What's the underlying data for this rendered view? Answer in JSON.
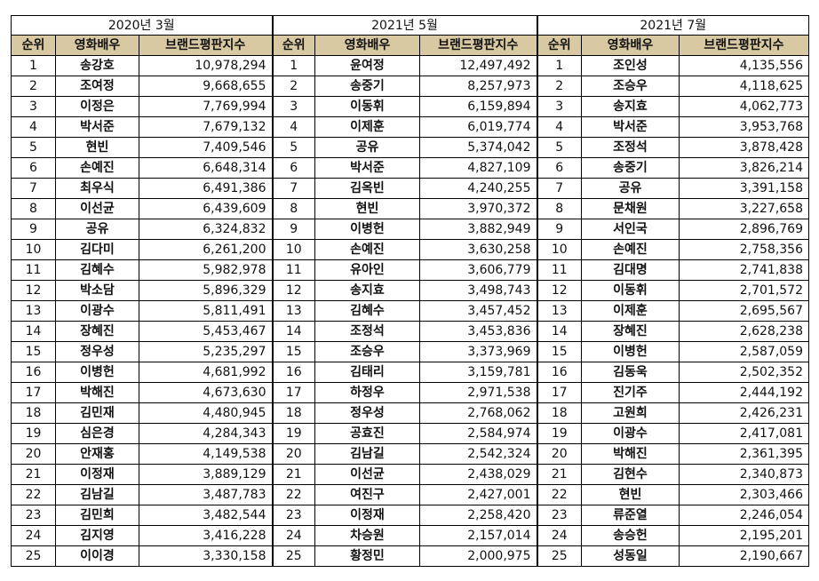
{
  "periods": [
    "2020년 3월",
    "2021년 5월",
    "2021년 7월"
  ],
  "headers": {
    "rank": "순위",
    "name": "영화배우",
    "index": "브랜드평판지수"
  },
  "rows": [
    [
      [
        "1",
        "송강호",
        "10,978,294"
      ],
      [
        "1",
        "윤여정",
        "12,497,492"
      ],
      [
        "1",
        "조인성",
        "4,135,556"
      ]
    ],
    [
      [
        "2",
        "조여정",
        "9,668,655"
      ],
      [
        "2",
        "송중기",
        "8,257,973"
      ],
      [
        "2",
        "조승우",
        "4,118,625"
      ]
    ],
    [
      [
        "3",
        "이정은",
        "7,769,994"
      ],
      [
        "3",
        "이동휘",
        "6,159,894"
      ],
      [
        "3",
        "송지효",
        "4,062,773"
      ]
    ],
    [
      [
        "4",
        "박서준",
        "7,679,132"
      ],
      [
        "4",
        "이제훈",
        "6,019,774"
      ],
      [
        "4",
        "박서준",
        "3,953,768"
      ]
    ],
    [
      [
        "5",
        "현빈",
        "7,409,546"
      ],
      [
        "5",
        "공유",
        "5,374,042"
      ],
      [
        "5",
        "조정석",
        "3,878,428"
      ]
    ],
    [
      [
        "6",
        "손예진",
        "6,648,314"
      ],
      [
        "6",
        "박서준",
        "4,827,109"
      ],
      [
        "6",
        "송중기",
        "3,826,214"
      ]
    ],
    [
      [
        "7",
        "최우식",
        "6,491,386"
      ],
      [
        "7",
        "김옥빈",
        "4,240,255"
      ],
      [
        "7",
        "공유",
        "3,391,158"
      ]
    ],
    [
      [
        "8",
        "이선균",
        "6,439,609"
      ],
      [
        "8",
        "현빈",
        "3,970,372"
      ],
      [
        "8",
        "문채원",
        "3,227,658"
      ]
    ],
    [
      [
        "9",
        "공유",
        "6,324,832"
      ],
      [
        "9",
        "이병헌",
        "3,882,949"
      ],
      [
        "9",
        "서인국",
        "2,896,769"
      ]
    ],
    [
      [
        "10",
        "김다미",
        "6,261,200"
      ],
      [
        "10",
        "손예진",
        "3,630,258"
      ],
      [
        "10",
        "손예진",
        "2,758,356"
      ]
    ],
    [
      [
        "11",
        "김혜수",
        "5,982,978"
      ],
      [
        "11",
        "유아인",
        "3,606,779"
      ],
      [
        "11",
        "김대명",
        "2,741,838"
      ]
    ],
    [
      [
        "12",
        "박소담",
        "5,896,329"
      ],
      [
        "12",
        "송지효",
        "3,498,743"
      ],
      [
        "12",
        "이동휘",
        "2,701,572"
      ]
    ],
    [
      [
        "13",
        "이광수",
        "5,811,491"
      ],
      [
        "13",
        "김혜수",
        "3,457,452"
      ],
      [
        "13",
        "이제훈",
        "2,695,567"
      ]
    ],
    [
      [
        "14",
        "장혜진",
        "5,453,467"
      ],
      [
        "14",
        "조정석",
        "3,453,836"
      ],
      [
        "14",
        "장혜진",
        "2,628,238"
      ]
    ],
    [
      [
        "15",
        "정우성",
        "5,235,297"
      ],
      [
        "15",
        "조승우",
        "3,373,969"
      ],
      [
        "15",
        "이병헌",
        "2,587,059"
      ]
    ],
    [
      [
        "16",
        "이병헌",
        "4,681,992"
      ],
      [
        "16",
        "김태리",
        "3,159,781"
      ],
      [
        "16",
        "김동욱",
        "2,502,352"
      ]
    ],
    [
      [
        "17",
        "박해진",
        "4,673,630"
      ],
      [
        "17",
        "하정우",
        "2,971,538"
      ],
      [
        "17",
        "진기주",
        "2,444,192"
      ]
    ],
    [
      [
        "18",
        "김민재",
        "4,480,945"
      ],
      [
        "18",
        "정우성",
        "2,768,062"
      ],
      [
        "18",
        "고원희",
        "2,426,231"
      ]
    ],
    [
      [
        "19",
        "심은경",
        "4,284,343"
      ],
      [
        "19",
        "공효진",
        "2,584,974"
      ],
      [
        "19",
        "이광수",
        "2,417,081"
      ]
    ],
    [
      [
        "20",
        "안재홍",
        "4,149,538"
      ],
      [
        "20",
        "김남길",
        "2,542,324"
      ],
      [
        "20",
        "박해진",
        "2,361,395"
      ]
    ],
    [
      [
        "21",
        "이정재",
        "3,889,129"
      ],
      [
        "21",
        "이선균",
        "2,438,029"
      ],
      [
        "21",
        "김현수",
        "2,340,873"
      ]
    ],
    [
      [
        "22",
        "김남길",
        "3,487,783"
      ],
      [
        "22",
        "여진구",
        "2,427,001"
      ],
      [
        "22",
        "현빈",
        "2,303,466"
      ]
    ],
    [
      [
        "23",
        "김민희",
        "3,482,544"
      ],
      [
        "23",
        "이정재",
        "2,258,420"
      ],
      [
        "23",
        "류준열",
        "2,246,054"
      ]
    ],
    [
      [
        "24",
        "김지영",
        "3,416,228"
      ],
      [
        "24",
        "차승원",
        "2,157,014"
      ],
      [
        "24",
        "송승헌",
        "2,195,201"
      ]
    ],
    [
      [
        "25",
        "이이경",
        "3,330,158"
      ],
      [
        "25",
        "황정민",
        "2,000,975"
      ],
      [
        "25",
        "성동일",
        "2,190,667"
      ]
    ]
  ]
}
